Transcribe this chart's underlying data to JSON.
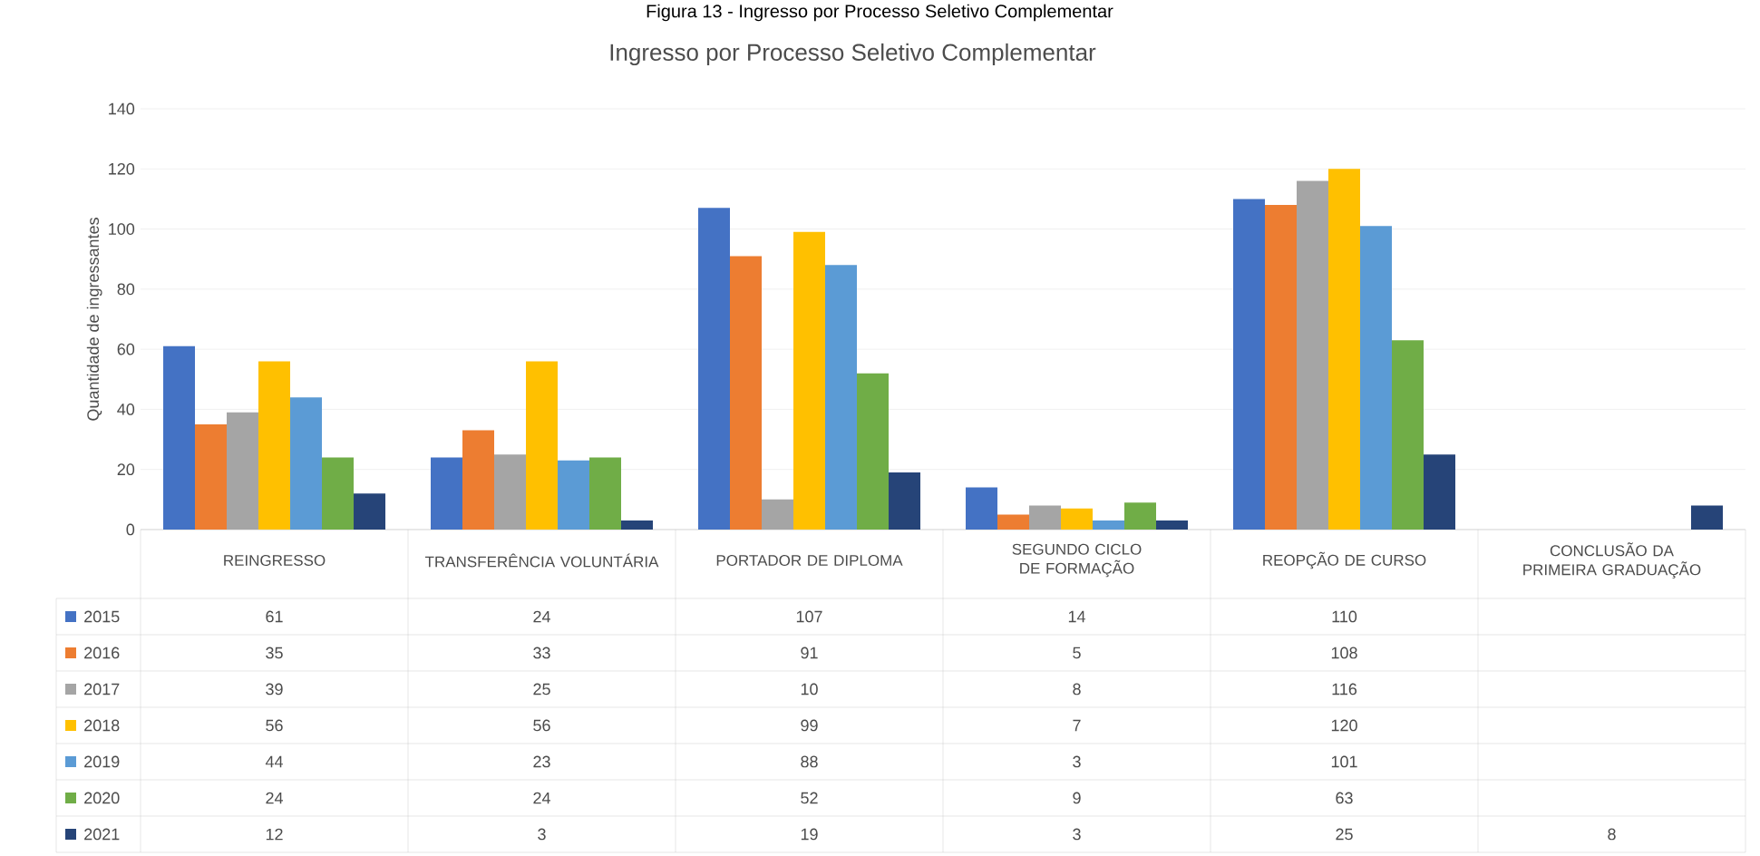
{
  "chart_data": {
    "type": "bar",
    "title": "Ingresso por Processo Seletivo Complementar",
    "ylabel": "Quantidade de ingressantes",
    "annotations": [
      "Figura 13 - Ingresso por Processo Seletivo Complementar"
    ],
    "categories": [
      "REINGRESSO",
      "TRANSFERÊNCIA VOLUNTÁRIA",
      "PORTADOR DE DIPLOMA",
      "SEGUNDO CICLO DE FORMAÇÃO",
      "REOPÇÃO DE CURSO",
      "CONCLUSÃO DA PRIMEIRA GRADUAÇÃO"
    ],
    "series": [
      {
        "name": "2015",
        "color": "#4472c4",
        "values": [
          61,
          24,
          107,
          14,
          110,
          null
        ]
      },
      {
        "name": "2016",
        "color": "#ed7d31",
        "values": [
          35,
          33,
          91,
          5,
          108,
          null
        ]
      },
      {
        "name": "2017",
        "color": "#a5a5a5",
        "values": [
          39,
          25,
          10,
          8,
          116,
          null
        ]
      },
      {
        "name": "2018",
        "color": "#ffc000",
        "values": [
          56,
          56,
          99,
          7,
          120,
          null
        ]
      },
      {
        "name": "2019",
        "color": "#5b9bd5",
        "values": [
          44,
          23,
          88,
          3,
          101,
          null
        ]
      },
      {
        "name": "2020",
        "color": "#70ad47",
        "values": [
          24,
          24,
          52,
          9,
          63,
          null
        ]
      },
      {
        "name": "2021",
        "color": "#264478",
        "values": [
          12,
          3,
          19,
          3,
          25,
          8
        ]
      }
    ],
    "ylim": [
      0,
      140
    ],
    "yticks": [
      0,
      20,
      40,
      60,
      80,
      100,
      120,
      140
    ],
    "grid": "y",
    "legend": "bottom",
    "data_labels": true
  }
}
